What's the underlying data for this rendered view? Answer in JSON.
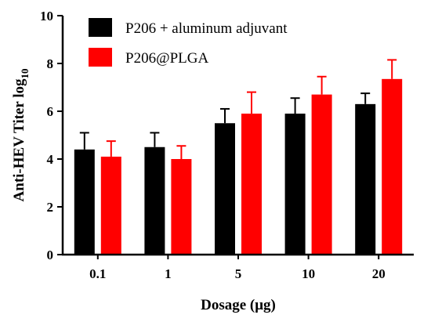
{
  "chart_data": {
    "type": "bar",
    "xlabel": "Dosage (μg)",
    "ylabel": "Anti-HEV Titer log",
    "ylabel_subscript": "10",
    "categories": [
      "0.1",
      "1",
      "5",
      "10",
      "20"
    ],
    "ylim": [
      0,
      10
    ],
    "yticks": [
      "0",
      "2",
      "4",
      "6",
      "8",
      "10"
    ],
    "grid": false,
    "legend_position": "top-left",
    "series": [
      {
        "name": "P206 + aluminum adjuvant",
        "color": "#000000",
        "values": [
          4.4,
          4.5,
          5.5,
          5.9,
          6.3
        ],
        "errors": [
          0.7,
          0.6,
          0.6,
          0.65,
          0.45
        ]
      },
      {
        "name": "P206@PLGA",
        "color": "#ff0000",
        "values": [
          4.1,
          4.0,
          5.9,
          6.7,
          7.35
        ],
        "errors": [
          0.65,
          0.55,
          0.9,
          0.75,
          0.8
        ]
      }
    ]
  }
}
